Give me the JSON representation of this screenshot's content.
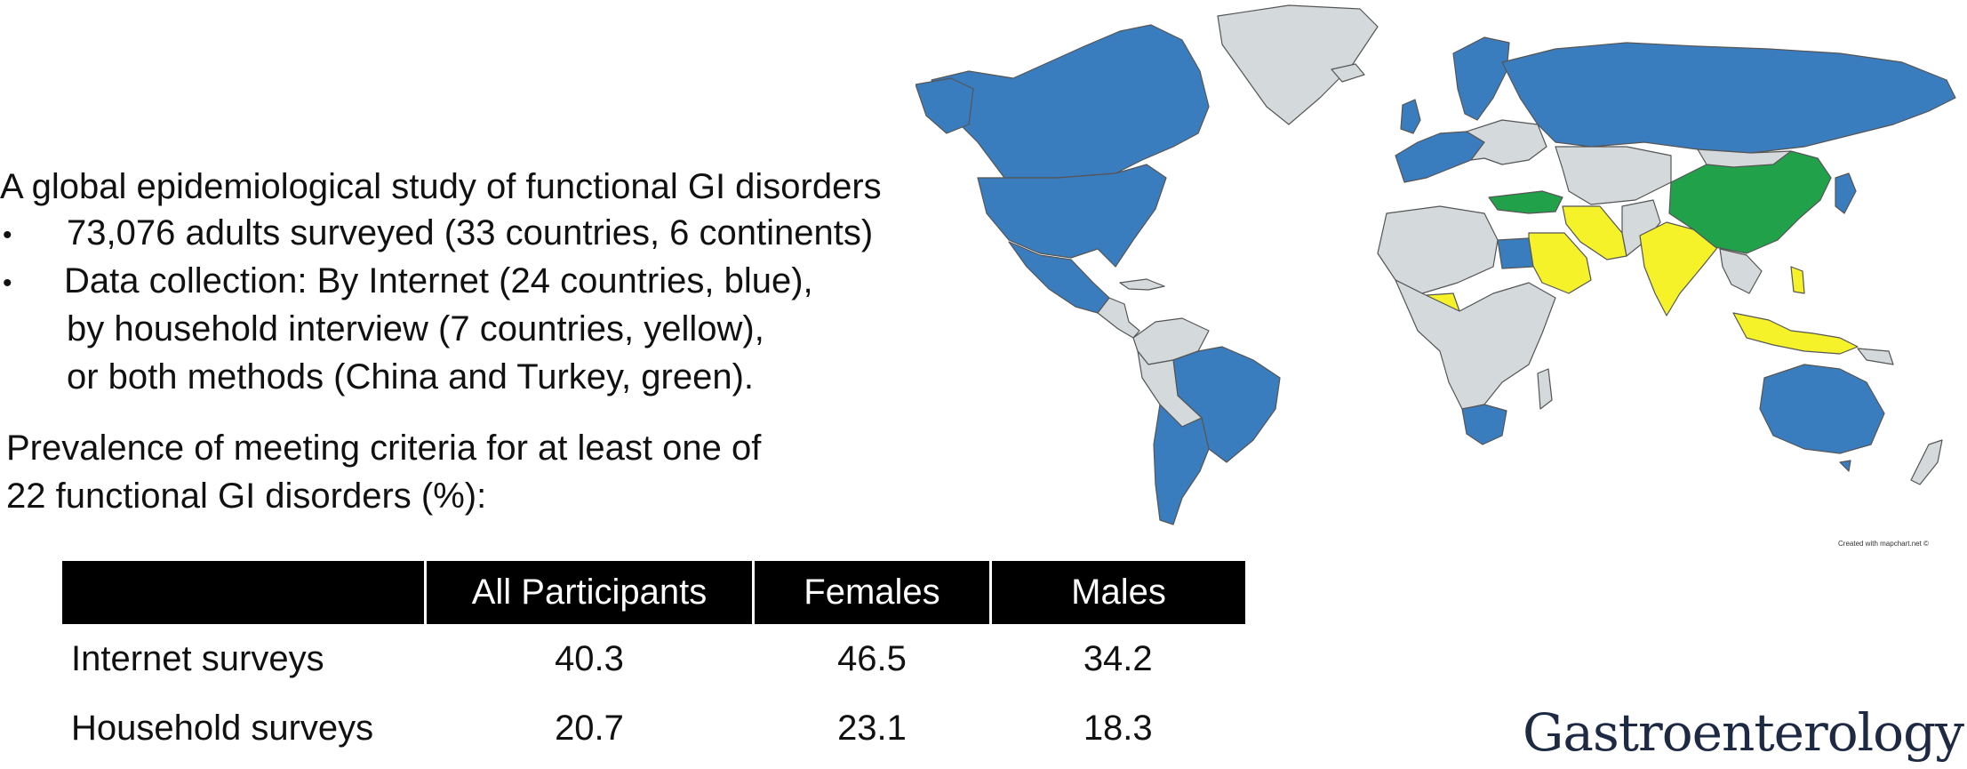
{
  "text": {
    "heading": "A global epidemiological study of functional GI disorders",
    "bullets": [
      "73,076 adults surveyed (33 countries, 6 continents)",
      "Data collection: By Internet (24 countries, blue),",
      "by household interview (7 countries, yellow),",
      "or both methods (China and Turkey, green)."
    ],
    "bullet_marker": "•",
    "prevalence": [
      "Prevalence of meeting criteria for at least one of",
      "22 functional GI disorders (%):"
    ]
  },
  "table": {
    "headers": [
      "",
      "All Participants",
      "Females",
      "Males"
    ],
    "rows": [
      {
        "label": "Internet surveys",
        "values": [
          "40.3",
          "46.5",
          "34.2"
        ]
      },
      {
        "label": "Household surveys",
        "values": [
          "20.7",
          "23.1",
          "18.3"
        ]
      }
    ]
  },
  "map": {
    "credit": "Created with mapchart.net ©",
    "colors": {
      "internet": "#3a7dbf",
      "household": "#f6f22a",
      "both": "#21a24a",
      "other": "#d4d9dc",
      "border": "#555555"
    }
  },
  "journal": "Gastroenterology"
}
